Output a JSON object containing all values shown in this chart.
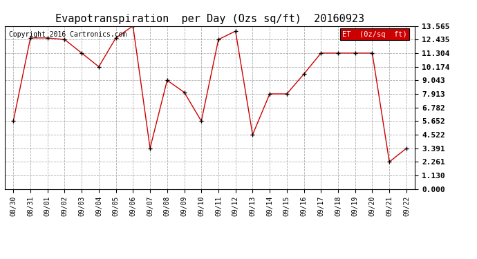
{
  "title": "Evapotranspiration  per Day (Ozs sq/ft)  20160923",
  "copyright": "Copyright 2016 Cartronics.com",
  "legend_label": "ET  (0z/sq  ft)",
  "x_labels": [
    "08/30",
    "08/31",
    "09/01",
    "09/02",
    "09/03",
    "09/04",
    "09/05",
    "09/06",
    "09/07",
    "09/08",
    "09/09",
    "09/10",
    "09/11",
    "09/12",
    "09/13",
    "09/14",
    "09/15",
    "09/16",
    "09/17",
    "09/18",
    "09/19",
    "09/20",
    "09/21",
    "09/22"
  ],
  "y_values": [
    5.652,
    12.565,
    12.565,
    12.435,
    11.304,
    10.174,
    12.565,
    13.565,
    3.391,
    9.043,
    8.043,
    5.652,
    12.435,
    13.13,
    4.522,
    7.913,
    7.913,
    9.565,
    11.304,
    11.304,
    11.304,
    11.304,
    2.261,
    3.391
  ],
  "y_ticks": [
    0.0,
    1.13,
    2.261,
    3.391,
    4.522,
    5.652,
    6.782,
    7.913,
    9.043,
    10.174,
    11.304,
    12.435,
    13.565
  ],
  "ylim": [
    0.0,
    13.565
  ],
  "line_color": "#cc0000",
  "marker_color": "#000000",
  "bg_color": "#ffffff",
  "grid_color": "#999999",
  "legend_bg": "#cc0000",
  "legend_text_color": "#ffffff",
  "title_fontsize": 11,
  "copyright_fontsize": 7,
  "tick_fontsize": 7,
  "ytick_fontsize": 8
}
